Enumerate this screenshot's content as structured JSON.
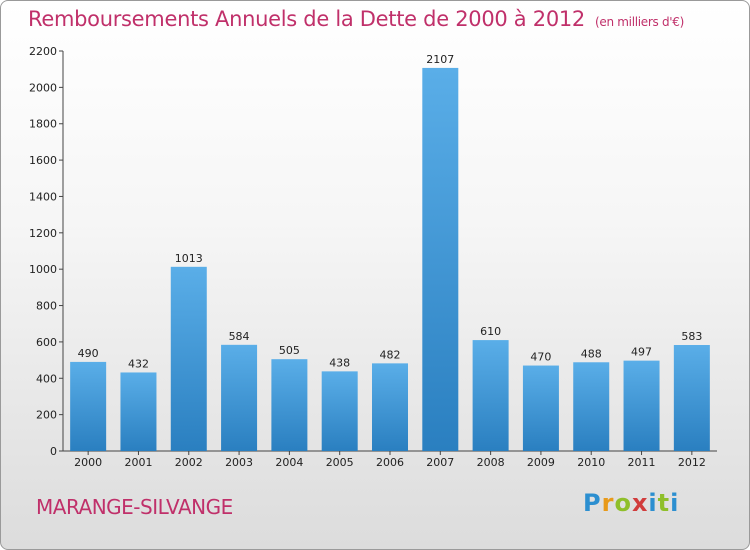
{
  "chart_data": {
    "type": "bar",
    "title": "Remboursements Annuels de la Dette de 2000 à 2012",
    "subtitle": "(en milliers d'€)",
    "categories": [
      "2000",
      "2001",
      "2002",
      "2003",
      "2004",
      "2005",
      "2006",
      "2007",
      "2008",
      "2009",
      "2010",
      "2011",
      "2012"
    ],
    "values": [
      490,
      432,
      1013,
      584,
      505,
      438,
      482,
      2107,
      610,
      470,
      488,
      497,
      583
    ],
    "data_labels": [
      "490",
      "432",
      "1013",
      "584",
      "505",
      "438",
      "482",
      "2107",
      "610",
      "470",
      "488",
      "497",
      "583"
    ],
    "yticks": [
      "0",
      "200",
      "400",
      "600",
      "800",
      "1000",
      "1200",
      "1400",
      "1600",
      "1800",
      "2000",
      "2200"
    ],
    "ylim": [
      0,
      2200
    ],
    "grid": false,
    "colors": {
      "bar_light": "#5aaee8",
      "bar_dark": "#2a7fc0",
      "title": "#c0306a"
    }
  },
  "footer": {
    "city": "MARANGE-SILVANGE",
    "logo_letters": [
      "P",
      "r",
      "o",
      "x",
      "i",
      "t",
      "i"
    ]
  }
}
